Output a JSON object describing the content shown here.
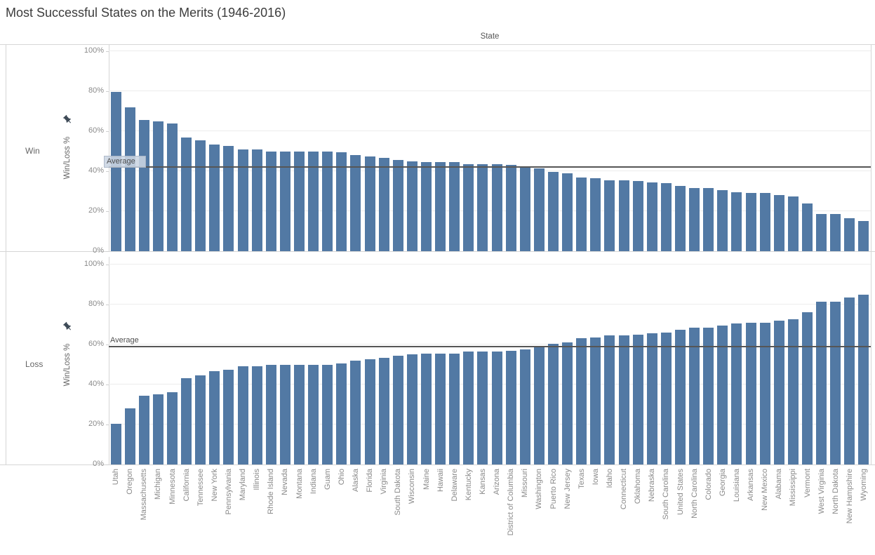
{
  "title": "Most Successful States on the Merits (1946-2016)",
  "column_header": "State",
  "y_axis_label": "Win/Loss %",
  "average_label": "Average",
  "icons": {
    "pinned_axis": "pushpin-icon"
  },
  "colors": {
    "bar": "#5279a4",
    "average_line": "#565656",
    "gridline": "#ececec",
    "panel_border": "#d6d6d6",
    "axis_text": "#8a8a8a",
    "title_text": "#3c3c3c",
    "average_box_bg": "#cbd5e3",
    "pin_icon": "#3e4a57"
  },
  "chart_data": {
    "type": "bar",
    "title": "Most Successful States on the Merits (1946-2016)",
    "xlabel": "State",
    "ylabel": "Win/Loss %",
    "ylim": [
      0,
      100
    ],
    "yticks": [
      0,
      20,
      40,
      60,
      80,
      100
    ],
    "ytick_labels": [
      "0%",
      "20%",
      "40%",
      "60%",
      "80%",
      "100%"
    ],
    "grid": true,
    "categories": [
      "Utah",
      "Oregon",
      "Massachusetts",
      "Michigan",
      "Minnesota",
      "California",
      "Tennessee",
      "New York",
      "Pennsylvania",
      "Maryland",
      "Illinois",
      "Rhode Island",
      "Nevada",
      "Montana",
      "Indiana",
      "Guam",
      "Ohio",
      "Alaska",
      "Florida",
      "Virginia",
      "South Dakota",
      "Wisconsin",
      "Maine",
      "Hawaii",
      "Delaware",
      "Kentucky",
      "Kansas",
      "Arizona",
      "District of Columbia",
      "Missouri",
      "Washington",
      "Puerto Rico",
      "New Jersey",
      "Texas",
      "Iowa",
      "Idaho",
      "Connecticut",
      "Oklahoma",
      "Nebraska",
      "South Carolina",
      "United States",
      "North Carolina",
      "Colorado",
      "Georgia",
      "Louisiana",
      "Arkansas",
      "New Mexico",
      "Alabama",
      "Mississippi",
      "Vermont",
      "West Virginia",
      "North Dakota",
      "New Hampshire",
      "Wyoming"
    ],
    "series": [
      {
        "name": "Win",
        "average": 42,
        "average_label_boxed": true,
        "values": [
          79.5,
          72,
          65.5,
          65,
          64,
          57,
          55.5,
          53.5,
          52.5,
          51,
          51,
          50,
          50,
          50,
          50,
          50,
          49.5,
          48,
          47.5,
          46.5,
          45.5,
          45,
          44.5,
          44.5,
          44.5,
          43.5,
          43.5,
          43.5,
          43,
          42.5,
          41.5,
          39.5,
          39,
          37,
          36.5,
          35.5,
          35.5,
          35,
          34.5,
          34,
          32.5,
          31.5,
          31.5,
          30.5,
          29.5,
          29,
          29,
          28,
          27.5,
          24,
          18.5,
          18.5,
          16.5,
          15
        ]
      },
      {
        "name": "Loss",
        "average": 59,
        "average_label_boxed": false,
        "values": [
          20.5,
          28,
          34.5,
          35,
          36,
          43,
          44.5,
          46.5,
          47.5,
          49,
          49,
          50,
          50,
          50,
          50,
          50,
          50.5,
          52,
          52.5,
          53.5,
          54.5,
          55,
          55.5,
          55.5,
          55.5,
          56.5,
          56.5,
          56.5,
          57,
          57.5,
          58.5,
          60.5,
          61,
          63,
          63.5,
          64.5,
          64.5,
          65,
          65.5,
          66,
          67.5,
          68.5,
          68.5,
          69.5,
          70.5,
          71,
          71,
          72,
          72.5,
          76,
          81.5,
          81.5,
          83.5,
          85
        ]
      }
    ]
  }
}
